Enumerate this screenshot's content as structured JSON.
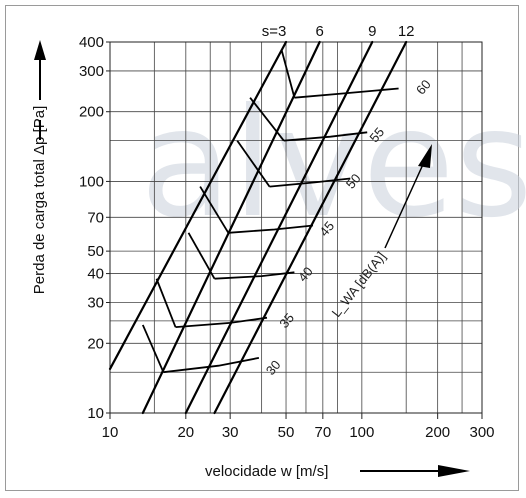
{
  "chart_data": {
    "type": "line",
    "watermark": "alves",
    "xlabel": "velocidade w  [m/s]",
    "ylabel": "Perda de carga total Δp  [Pa]",
    "xscale": "log",
    "yscale": "log",
    "xlim": [
      10,
      300
    ],
    "ylim": [
      10,
      400
    ],
    "x_ticks": [
      10,
      20,
      30,
      50,
      70,
      100,
      200,
      300
    ],
    "x_tick_labels": [
      "10",
      "20",
      "30",
      "50",
      "70",
      "100",
      "200",
      "300"
    ],
    "y_ticks": [
      10,
      20,
      30,
      40,
      50,
      70,
      100,
      200,
      300,
      400
    ],
    "y_tick_labels": [
      "10",
      "20",
      "30",
      "40",
      "50",
      "70",
      "100",
      "200",
      "300",
      "400"
    ],
    "x_gridlines": [
      10,
      15,
      20,
      25,
      30,
      40,
      50,
      60,
      70,
      80,
      100,
      150,
      200,
      250,
      300
    ],
    "y_gridlines": [
      10,
      15,
      20,
      25,
      30,
      40,
      50,
      70,
      100,
      150,
      200,
      300,
      400
    ],
    "grid": true,
    "series": [
      {
        "name": "s=3",
        "points": [
          [
            10,
            15.5
          ],
          [
            50,
            400
          ]
        ]
      },
      {
        "name": "6",
        "points": [
          [
            13.5,
            10
          ],
          [
            68,
            400
          ]
        ]
      },
      {
        "name": "9",
        "points": [
          [
            20,
            10
          ],
          [
            110,
            400
          ]
        ]
      },
      {
        "name": "12",
        "points": [
          [
            26,
            10
          ],
          [
            150,
            400
          ]
        ]
      }
    ],
    "noise_line": {
      "label": "L_WA [dB(A)]",
      "levels": [
        "30",
        "35",
        "40",
        "45",
        "50",
        "55",
        "60"
      ],
      "curves": [
        [
          [
            16.3,
            15
          ],
          [
            27,
            16
          ],
          [
            39,
            17.3
          ]
        ],
        [
          [
            18.2,
            23.5
          ],
          [
            30,
            24.5
          ],
          [
            42,
            25.8
          ]
        ],
        [
          [
            26,
            38
          ],
          [
            40,
            39
          ],
          [
            54,
            40.5
          ]
        ],
        [
          [
            29.5,
            60
          ],
          [
            45,
            62
          ],
          [
            64,
            64.5
          ]
        ],
        [
          [
            43,
            95
          ],
          [
            65,
            99
          ],
          [
            90,
            103
          ]
        ],
        [
          [
            49,
            150
          ],
          [
            75,
            156
          ],
          [
            105,
            163
          ]
        ],
        [
          [
            54,
            230
          ],
          [
            85,
            240
          ],
          [
            140,
            252
          ]
        ]
      ],
      "zigzag": [
        [
          [
            13.5,
            24
          ],
          [
            16.3,
            15
          ]
        ],
        [
          [
            15.3,
            38
          ],
          [
            18.2,
            23.5
          ]
        ],
        [
          [
            20.5,
            60
          ],
          [
            26,
            38
          ]
        ],
        [
          [
            22.8,
            95
          ],
          [
            29.5,
            60
          ]
        ],
        [
          [
            32,
            150
          ],
          [
            43,
            95
          ]
        ],
        [
          [
            36,
            230
          ],
          [
            49,
            150
          ]
        ],
        [
          [
            48,
            370
          ],
          [
            54,
            230
          ]
        ]
      ]
    }
  }
}
